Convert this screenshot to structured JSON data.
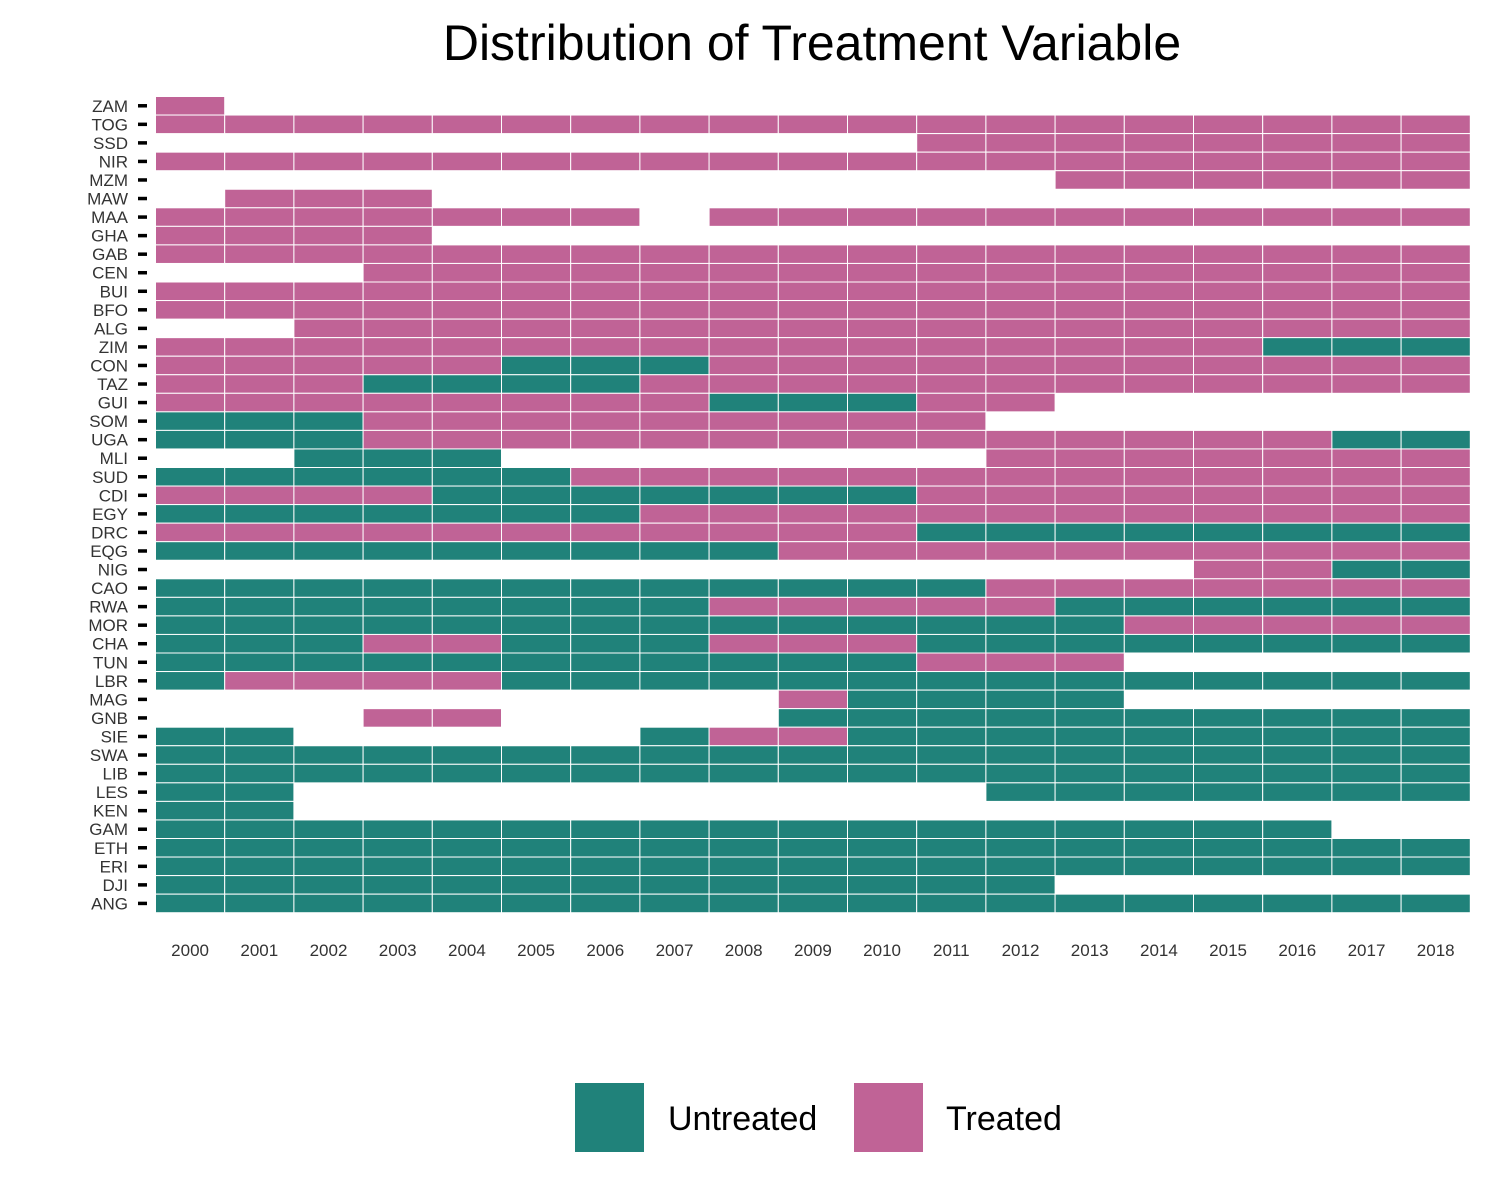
{
  "chart_data": {
    "type": "heatmap",
    "title": "Distribution of Treatment Variable",
    "xlabel": "",
    "ylabel": "",
    "legend_position": "bottom",
    "grid": false,
    "years": [
      "2000",
      "2001",
      "2002",
      "2003",
      "2004",
      "2005",
      "2006",
      "2007",
      "2008",
      "2009",
      "2010",
      "2011",
      "2012",
      "2013",
      "2014",
      "2015",
      "2016",
      "2017",
      "2018"
    ],
    "colors": {
      "untreated": "#20827a",
      "treated": "#c06396",
      "missing": "#ffffff"
    },
    "legend": [
      {
        "key": "untreated",
        "label": "Untreated"
      },
      {
        "key": "treated",
        "label": "Treated"
      }
    ],
    "coding": "T = Treated, U = Untreated, . = no observation; one character per year 2000-2018",
    "rows": [
      {
        "country": "ZAM",
        "status": "T.................."
      },
      {
        "country": "TOG",
        "status": "TTTTTTTTTTTTTTTTTTT"
      },
      {
        "country": "SSD",
        "status": "...........TTTTTTTT"
      },
      {
        "country": "NIR",
        "status": "TTTTTTTTTTTTTTTTTTT"
      },
      {
        "country": "MZM",
        "status": ".............TTTTTT"
      },
      {
        "country": "MAW",
        "status": ".TTT..............."
      },
      {
        "country": "MAA",
        "status": "TTTTTTT.TTTTTTTTTTT"
      },
      {
        "country": "GHA",
        "status": "TTTT..............."
      },
      {
        "country": "GAB",
        "status": "TTTTTTTTTTTTTTTTTTT"
      },
      {
        "country": "CEN",
        "status": "...TTTTTTTTTTTTTTTT"
      },
      {
        "country": "BUI",
        "status": "TTTTTTTTTTTTTTTTTTT"
      },
      {
        "country": "BFO",
        "status": "TTTTTTTTTTTTTTTTTTT"
      },
      {
        "country": "ALG",
        "status": "..TTTTTTTTTTTTTTTTT"
      },
      {
        "country": "ZIM",
        "status": "TTTTTTTTTTTTTTTTUUU"
      },
      {
        "country": "CON",
        "status": "TTTTTUUUTTTTTTTTTTT"
      },
      {
        "country": "TAZ",
        "status": "TTTUUUUTTTTTTTTTTTT"
      },
      {
        "country": "GUI",
        "status": "TTTTTTTTUUUTT......"
      },
      {
        "country": "SOM",
        "status": "UUUTTTTTTTTT......."
      },
      {
        "country": "UGA",
        "status": "UUUTTTTTTTTTTTTTTUU"
      },
      {
        "country": "MLI",
        "status": "..UUU.......TTTTTTT"
      },
      {
        "country": "SUD",
        "status": "UUUUUUTTTTTTTTTTTTT"
      },
      {
        "country": "CDI",
        "status": "TTTTUUUUUUUTTTTTTTT"
      },
      {
        "country": "EGY",
        "status": "UUUUUUUTTTTTTTTTTTT"
      },
      {
        "country": "DRC",
        "status": "TTTTTTTTTTTUUUUUUUU"
      },
      {
        "country": "EQG",
        "status": "UUUUUUUUUTTTTTTTTTT"
      },
      {
        "country": "NIG",
        "status": "...............TTUU"
      },
      {
        "country": "CAO",
        "status": "UUUUUUUUUUUUTTTTTTT"
      },
      {
        "country": "RWA",
        "status": "UUUUUUUUTTTTTUUUUUU"
      },
      {
        "country": "MOR",
        "status": "UUUUUUUUUUUUUUTTTTT"
      },
      {
        "country": "CHA",
        "status": "UUUTTUUUTTTUUUUUUUU"
      },
      {
        "country": "TUN",
        "status": "UUUUUUUUUUUTTT....."
      },
      {
        "country": "LBR",
        "status": "UTTTTUUUUUUUUUUUUUU"
      },
      {
        "country": "MAG",
        "status": ".........TUUUU....."
      },
      {
        "country": "GNB",
        "status": "...TT....UUUUUUUUUU"
      },
      {
        "country": "SIE",
        "status": "UU.....UTTUUUUUUUUU"
      },
      {
        "country": "SWA",
        "status": "UUUUUUUUUUUUUUUUUUU"
      },
      {
        "country": "LIB",
        "status": "UUUUUUUUUUUUUUUUUUU"
      },
      {
        "country": "LES",
        "status": "UU..........UUUUUUU"
      },
      {
        "country": "KEN",
        "status": "UU................."
      },
      {
        "country": "GAM",
        "status": "UUUUUUUUUUUUUUUUU.."
      },
      {
        "country": "ETH",
        "status": "UUUUUUUUUUUUUUUUUUU"
      },
      {
        "country": "ERI",
        "status": "UUUUUUUUUUUUUUUUUUU"
      },
      {
        "country": "DJI",
        "status": "UUUUUUUUUUUUU......"
      },
      {
        "country": "ANG",
        "status": "UUUUUUUUUUUUUUUUUUU"
      }
    ]
  }
}
